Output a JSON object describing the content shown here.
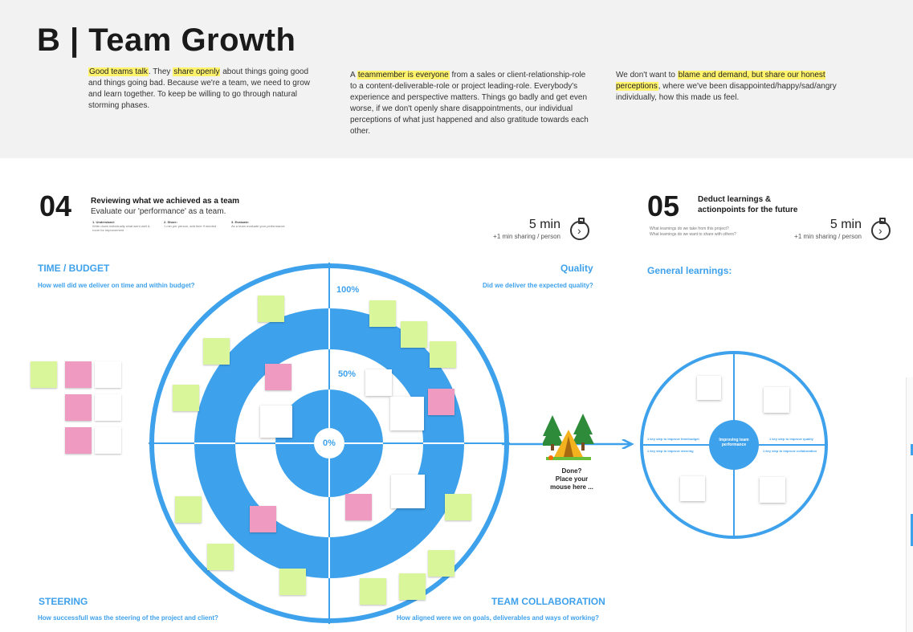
{
  "title": "B | Team Growth",
  "intro": {
    "col1": {
      "hl1": "Good teams talk",
      "t1": ". They ",
      "hl2": "share openly",
      "t2": " about things going good and things going bad. Because we're a team, we need to grow and learn together. To keep be willing to go through natural storming phases."
    },
    "col2": {
      "t1": "A ",
      "hl1": "teammember is everyone",
      "t2": " from a sales or client-relationship-role to a content-deliverable-role or project leading-role. Everybody's experience and perspective matters. Things go badly and get even worse, if we don't openly share disappointments, our individual perceptions of what just happened and also gratitude towards each other."
    },
    "col3": {
      "t1": "We don't want to ",
      "hl1": "blame and demand, but share our honest perceptions",
      "t2": ", where we've been disappointed/happy/sad/angry individually, how this made us feel."
    }
  },
  "step04": {
    "number": "04",
    "title": "Reviewing what we achieved as a team",
    "subtitle": "Evaluate our 'performance' as a team.",
    "mini1_title": "1. Understand:",
    "mini1_text": "Write down individually what went well & room for improvement",
    "mini2_title": "2. Share:",
    "mini2_text": "1 min per person, add time if needed",
    "mini3_title": "3. Evaluate:",
    "mini3_text": "As a team evaluate your performance",
    "timer_big": "5 min",
    "timer_small": "+1 min sharing / person"
  },
  "step05": {
    "number": "05",
    "title_line1": "Deduct learnings &",
    "title_line2": "actionpoints for the future",
    "q1": "What learnings do we take from this project?",
    "q2": "What learnings do we want to share with others?",
    "timer_big": "5 min",
    "timer_small": "+1 min sharing / person",
    "general_label": "General learnings:"
  },
  "quadrants": {
    "time_title": "TIME / BUDGET",
    "time_q": "How well did we deliver on time and within budget?",
    "quality_title": "Quality",
    "quality_q": "Did we deliver the expected quality?",
    "steering_title": "STEERING",
    "steering_q": "How successfull was the steering of the project and client?",
    "collab_title": "TEAM COLLABORATION",
    "collab_q": "How aligned were we on goals, deliverables and ways of working?"
  },
  "target": {
    "p100": "100%",
    "p50": "50%",
    "p0": "0%"
  },
  "done": {
    "line1": "Done?",
    "line2": "Place your",
    "line3": "mouse here ..."
  },
  "small_wheel": {
    "center": "Improving team performance",
    "left_top": "1 key step to improve time/budget",
    "left_bottom": "1 key step to improve steering",
    "right_top": "1 key step to improve quality",
    "right_bottom": "1 key step to improve collaboration"
  },
  "colors": {
    "accent": "#3ea1ec",
    "highlight": "#fff36b",
    "sticky_green": "#d9f79a",
    "sticky_pink": "#ef9bc1"
  },
  "icons": {
    "timer": "stopwatch-icon",
    "camp": "tent-camp-icon"
  }
}
